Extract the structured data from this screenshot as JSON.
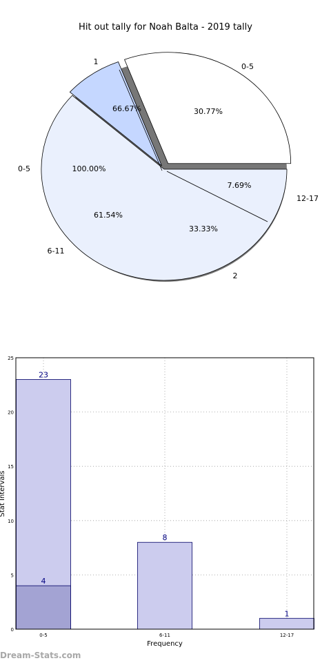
{
  "watermark": "Dream-Stats.com",
  "colors": {
    "pie_light": "#eaf0fd",
    "pie_white": "#ffffff",
    "pie_blue": "#c5d7ff",
    "bar_fill": "#ccccee",
    "bar_inner": "#a3a3d3",
    "bar_edge": "#000066",
    "bar_label": "#000080"
  },
  "chart_data": [
    {
      "type": "pie",
      "title": "Hit out tally for Noah Balta - 2019 tally",
      "outer_ring": {
        "slices": [
          {
            "label": "0-5",
            "value": 30.77,
            "pct_label": "30.77%",
            "fill": "#ffffff"
          },
          {
            "label": "12-17",
            "value": 7.69,
            "pct_label": "7.69%",
            "fill": "#c5d7ff"
          },
          {
            "label": "6-11",
            "value": 61.54,
            "pct_label": "61.54%",
            "fill": "#eaf0fd"
          }
        ]
      },
      "inner_ring": {
        "slices": [
          {
            "label": "2",
            "value": 33.33,
            "pct_label": "33.33%"
          },
          {
            "label": "1",
            "value": 66.67,
            "pct_label": "66.67%"
          },
          {
            "label": "0-5",
            "value": 100.0,
            "pct_label": "100.00%"
          }
        ]
      }
    },
    {
      "type": "bar",
      "title": "",
      "xlabel": "Frequency",
      "ylabel": "Stat Intervals",
      "categories": [
        "0-5",
        "6-11",
        "12-17"
      ],
      "series": [
        {
          "values": [
            23,
            8,
            1
          ],
          "labels": [
            "23",
            "8",
            "1"
          ]
        },
        {
          "values": [
            4,
            null,
            null
          ],
          "labels": [
            "4",
            "",
            ""
          ]
        }
      ],
      "ylim": [
        0,
        25
      ],
      "yticks": [
        "0",
        "5",
        "10",
        "15",
        "20",
        "25"
      ],
      "grid": true
    }
  ]
}
